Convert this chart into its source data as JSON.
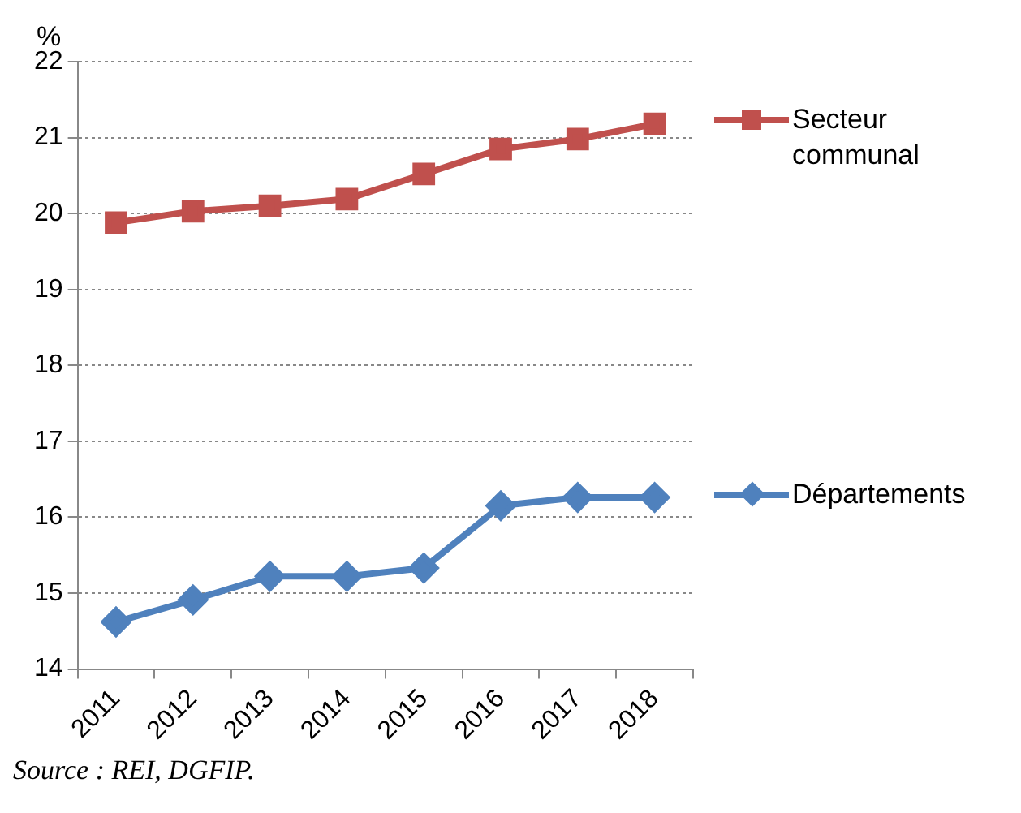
{
  "chart_data": {
    "type": "line",
    "ylabel": "%",
    "categories": [
      "2011",
      "2012",
      "2013",
      "2014",
      "2015",
      "2016",
      "2017",
      "2018"
    ],
    "series": [
      {
        "name": "Secteur communal",
        "color": "#c0504d",
        "marker": "square",
        "values": [
          19.88,
          20.03,
          20.1,
          20.19,
          20.52,
          20.85,
          20.98,
          21.18
        ]
      },
      {
        "name": "Départements",
        "color": "#4f81bd",
        "marker": "diamond",
        "values": [
          14.62,
          14.91,
          15.22,
          15.22,
          15.33,
          16.15,
          16.26,
          16.26
        ]
      }
    ],
    "ylim": [
      14,
      22
    ],
    "yticks": [
      14,
      15,
      16,
      17,
      18,
      19,
      20,
      21,
      22
    ],
    "grid": "y",
    "legend": "right",
    "line_style": "solid",
    "annotations": [
      "Source : REI, DGFIP."
    ]
  }
}
